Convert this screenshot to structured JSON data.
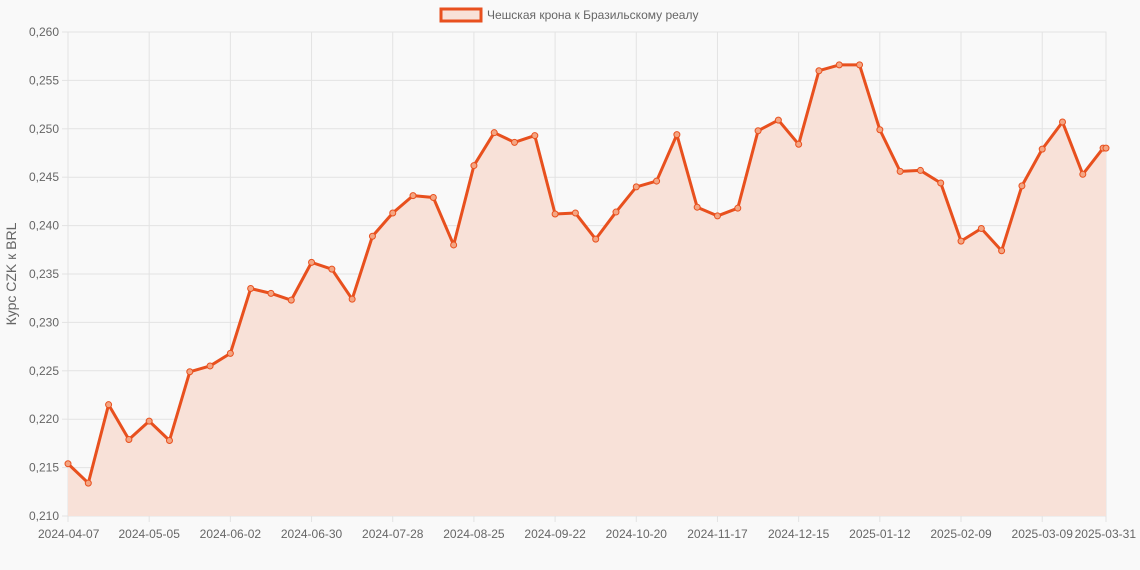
{
  "chart_data": {
    "type": "line",
    "title": "",
    "xlabel": "",
    "ylabel": "Курс CZK к BRL",
    "legend_position": "top-center",
    "grid": true,
    "filled": true,
    "ylim": [
      0.21,
      0.26
    ],
    "y_ticks": [
      "0,210",
      "0,215",
      "0,220",
      "0,225",
      "0,230",
      "0,235",
      "0,240",
      "0,245",
      "0,250",
      "0,255",
      "0,260"
    ],
    "x_ticks": [
      "2024-04-07",
      "2024-05-05",
      "2024-06-02",
      "2024-06-30",
      "2024-07-28",
      "2024-08-25",
      "2024-09-22",
      "2024-10-20",
      "2024-11-17",
      "2024-12-15",
      "2025-01-12",
      "2025-02-09",
      "2025-03-09",
      "2025-03-31"
    ],
    "x": [
      "2024-04-07",
      "2024-04-14",
      "2024-04-21",
      "2024-04-28",
      "2024-05-05",
      "2024-05-12",
      "2024-05-19",
      "2024-05-26",
      "2024-06-02",
      "2024-06-09",
      "2024-06-16",
      "2024-06-23",
      "2024-06-30",
      "2024-07-07",
      "2024-07-14",
      "2024-07-21",
      "2024-07-28",
      "2024-08-04",
      "2024-08-11",
      "2024-08-18",
      "2024-08-25",
      "2024-09-01",
      "2024-09-08",
      "2024-09-15",
      "2024-09-22",
      "2024-09-29",
      "2024-10-06",
      "2024-10-13",
      "2024-10-20",
      "2024-10-27",
      "2024-11-03",
      "2024-11-10",
      "2024-11-17",
      "2024-11-24",
      "2024-12-01",
      "2024-12-08",
      "2024-12-15",
      "2024-12-22",
      "2024-12-29",
      "2025-01-05",
      "2025-01-12",
      "2025-01-19",
      "2025-01-26",
      "2025-02-02",
      "2025-02-09",
      "2025-02-16",
      "2025-02-23",
      "2025-03-02",
      "2025-03-09",
      "2025-03-16",
      "2025-03-23",
      "2025-03-30",
      "2025-03-31"
    ],
    "series": [
      {
        "name": "Чешская крона к Бразильскому реалу",
        "color": "#e8501e",
        "fill": "#f8e1d8",
        "values": [
          0.2154,
          0.2134,
          0.2215,
          0.2179,
          0.2198,
          0.2178,
          0.2249,
          0.2255,
          0.2268,
          0.2335,
          0.233,
          0.2323,
          0.2362,
          0.2355,
          0.2324,
          0.2389,
          0.2413,
          0.2431,
          0.2429,
          0.238,
          0.2462,
          0.2496,
          0.2486,
          0.2493,
          0.2412,
          0.2413,
          0.2386,
          0.2414,
          0.244,
          0.2446,
          0.2494,
          0.2419,
          0.241,
          0.2418,
          0.2498,
          0.2509,
          0.2484,
          0.256,
          0.2566,
          0.2566,
          0.2499,
          0.2456,
          0.2457,
          0.2444,
          0.2384,
          0.2397,
          0.2374,
          0.2441,
          0.2479,
          0.2507,
          0.2453,
          0.248,
          0.248
        ]
      }
    ]
  }
}
